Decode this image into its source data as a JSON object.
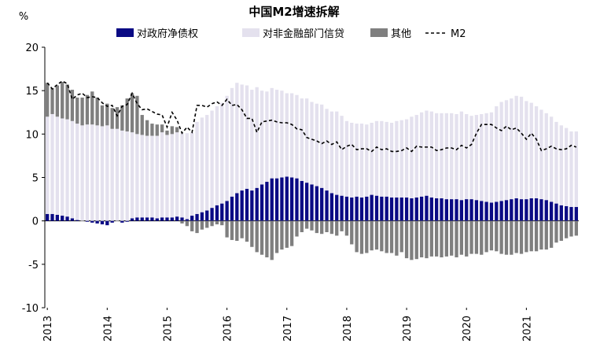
{
  "chart_data": {
    "type": "bar",
    "title": "中国M2增速拆解",
    "ylabel": "%",
    "xlabel": "",
    "ylim": [
      -10,
      20
    ],
    "yticks": [
      -10,
      -5,
      0,
      5,
      10,
      15,
      20
    ],
    "xticks": [
      "2013",
      "2014",
      "2015",
      "2016",
      "2017",
      "2018",
      "2019",
      "2020",
      "2021"
    ],
    "legend_position": "top",
    "x": [
      "2013-01",
      "2013-02",
      "2013-03",
      "2013-04",
      "2013-05",
      "2013-06",
      "2013-07",
      "2013-08",
      "2013-09",
      "2013-10",
      "2013-11",
      "2013-12",
      "2014-01",
      "2014-02",
      "2014-03",
      "2014-04",
      "2014-05",
      "2014-06",
      "2014-07",
      "2014-08",
      "2014-09",
      "2014-10",
      "2014-11",
      "2014-12",
      "2015-01",
      "2015-02",
      "2015-03",
      "2015-04",
      "2015-05",
      "2015-06",
      "2015-07",
      "2015-08",
      "2015-09",
      "2015-10",
      "2015-11",
      "2015-12",
      "2016-01",
      "2016-02",
      "2016-03",
      "2016-04",
      "2016-05",
      "2016-06",
      "2016-07",
      "2016-08",
      "2016-09",
      "2016-10",
      "2016-11",
      "2016-12",
      "2017-01",
      "2017-02",
      "2017-03",
      "2017-04",
      "2017-05",
      "2017-06",
      "2017-07",
      "2017-08",
      "2017-09",
      "2017-10",
      "2017-11",
      "2017-12",
      "2018-01",
      "2018-02",
      "2018-03",
      "2018-04",
      "2018-05",
      "2018-06",
      "2018-07",
      "2018-08",
      "2018-09",
      "2018-10",
      "2018-11",
      "2018-12",
      "2019-01",
      "2019-02",
      "2019-03",
      "2019-04",
      "2019-05",
      "2019-06",
      "2019-07",
      "2019-08",
      "2019-09",
      "2019-10",
      "2019-11",
      "2019-12",
      "2020-01",
      "2020-02",
      "2020-03",
      "2020-04",
      "2020-05",
      "2020-06",
      "2020-07",
      "2020-08",
      "2020-09",
      "2020-10",
      "2020-11",
      "2020-12",
      "2021-01",
      "2021-02",
      "2021-03",
      "2021-04",
      "2021-05",
      "2021-06",
      "2021-07",
      "2021-08",
      "2021-09",
      "2021-10",
      "2021-11"
    ],
    "series": [
      {
        "name": "对政府净债权",
        "kind": "bar",
        "color": "#0a0a84",
        "values": [
          0.8,
          0.8,
          0.7,
          0.6,
          0.5,
          0.3,
          0.1,
          0.0,
          -0.1,
          -0.2,
          -0.3,
          -0.4,
          -0.5,
          -0.2,
          0.0,
          -0.2,
          -0.1,
          0.3,
          0.4,
          0.4,
          0.4,
          0.4,
          0.3,
          0.4,
          0.4,
          0.4,
          0.5,
          0.4,
          0.2,
          0.6,
          0.8,
          1.0,
          1.2,
          1.5,
          1.8,
          2.0,
          2.3,
          2.8,
          3.2,
          3.5,
          3.7,
          3.5,
          3.8,
          4.2,
          4.5,
          4.9,
          4.9,
          5.0,
          5.1,
          5.0,
          4.9,
          4.6,
          4.4,
          4.2,
          4.0,
          3.8,
          3.5,
          3.2,
          3.0,
          2.9,
          2.8,
          2.7,
          2.8,
          2.7,
          2.8,
          3.0,
          2.9,
          2.8,
          2.8,
          2.7,
          2.7,
          2.7,
          2.7,
          2.6,
          2.7,
          2.8,
          2.9,
          2.7,
          2.6,
          2.6,
          2.5,
          2.5,
          2.5,
          2.4,
          2.5,
          2.5,
          2.4,
          2.3,
          2.2,
          2.1,
          2.2,
          2.3,
          2.4,
          2.5,
          2.6,
          2.5,
          2.5,
          2.6,
          2.6,
          2.5,
          2.4,
          2.2,
          2.0,
          1.8,
          1.7,
          1.6,
          1.6
        ]
      },
      {
        "name": "对非金融部门信贷",
        "kind": "bar",
        "color": "#e4e1ee",
        "values": [
          11.2,
          11.5,
          11.3,
          11.2,
          11.2,
          11.2,
          11.1,
          11.0,
          11.1,
          11.1,
          11.0,
          10.9,
          11.0,
          10.6,
          10.6,
          10.4,
          10.3,
          9.9,
          9.6,
          9.5,
          9.4,
          9.4,
          9.5,
          9.8,
          9.5,
          9.6,
          9.7,
          9.7,
          9.9,
          9.6,
          10.6,
          10.9,
          11.0,
          11.2,
          11.4,
          11.6,
          12.1,
          12.5,
          12.7,
          12.2,
          11.9,
          11.6,
          11.6,
          10.8,
          10.4,
          10.4,
          10.2,
          10.0,
          9.6,
          9.7,
          9.6,
          9.5,
          9.7,
          9.5,
          9.5,
          9.6,
          9.4,
          9.4,
          9.6,
          9.2,
          8.7,
          8.6,
          8.4,
          8.5,
          8.3,
          8.3,
          8.6,
          8.7,
          8.6,
          8.6,
          8.8,
          8.9,
          9.0,
          9.4,
          9.5,
          9.7,
          9.8,
          9.9,
          9.8,
          9.8,
          9.9,
          9.9,
          9.8,
          10.2,
          9.8,
          9.6,
          9.8,
          10.0,
          10.2,
          10.4,
          11.0,
          11.4,
          11.5,
          11.6,
          11.8,
          11.8,
          11.3,
          11.0,
          10.6,
          10.3,
          10.0,
          9.8,
          9.4,
          9.2,
          9.0,
          8.7,
          8.7
        ]
      },
      {
        "name": "其他",
        "kind": "bar",
        "color": "#7f7f7f",
        "values_pos": [
          3.9,
          3.0,
          3.6,
          4.2,
          4.0,
          3.6,
          3.0,
          3.2,
          3.4,
          3.8,
          3.2,
          2.4,
          2.5,
          2.4,
          2.5,
          2.9,
          3.8,
          4.5,
          4.4,
          2.3,
          1.8,
          1.4,
          1.3,
          0.9,
          0.5,
          0.9,
          0.6,
          0.0,
          0.0,
          0.0,
          0.0,
          0.0,
          0.0,
          0.0,
          0.0,
          0.0,
          0,
          0,
          0,
          0,
          0,
          0,
          0,
          0,
          0,
          0,
          0,
          0,
          0,
          0,
          0,
          0,
          0,
          0,
          0,
          0,
          0,
          0,
          0,
          0,
          0,
          0,
          0,
          0,
          0,
          0,
          0,
          0,
          0,
          0,
          0,
          0,
          0,
          0,
          0,
          0,
          0,
          0,
          0,
          0,
          0,
          0,
          0,
          0,
          0,
          0,
          0,
          0,
          0,
          0,
          0,
          0,
          0,
          0,
          0,
          0,
          0,
          0,
          0,
          0,
          0,
          0,
          0,
          0,
          0,
          0,
          0
        ],
        "values_neg": [
          0,
          0,
          0,
          0,
          0,
          0,
          0,
          0,
          0,
          0,
          0,
          0,
          0,
          0,
          0,
          0,
          0,
          0,
          0,
          0,
          0,
          0,
          0,
          0,
          0,
          0,
          0,
          -0.3,
          -0.6,
          -1.2,
          -1.4,
          -1.0,
          -0.8,
          -0.6,
          -0.4,
          -0.5,
          -1.9,
          -2.2,
          -2.3,
          -2.0,
          -2.4,
          -3.0,
          -3.6,
          -3.9,
          -4.2,
          -4.5,
          -3.7,
          -3.3,
          -3.1,
          -2.9,
          -1.8,
          -1.3,
          -0.9,
          -1.1,
          -1.4,
          -1.5,
          -1.3,
          -1.5,
          -1.7,
          -1.2,
          -1.7,
          -2.7,
          -3.6,
          -3.8,
          -3.7,
          -3.4,
          -3.3,
          -3.5,
          -3.7,
          -3.7,
          -4.0,
          -3.6,
          -4.3,
          -4.5,
          -4.4,
          -4.2,
          -4.3,
          -4.1,
          -4.1,
          -4.2,
          -4.1,
          -4.0,
          -4.2,
          -3.9,
          -4.1,
          -3.8,
          -3.8,
          -3.9,
          -3.6,
          -3.4,
          -3.5,
          -3.8,
          -3.9,
          -3.9,
          -3.7,
          -3.8,
          -3.6,
          -3.5,
          -3.5,
          -3.3,
          -3.3,
          -3.1,
          -2.5,
          -2.3,
          -2.0,
          -1.8,
          -1.7
        ]
      },
      {
        "name": "M2",
        "kind": "line",
        "color": "#000000",
        "values": [
          15.9,
          15.2,
          15.7,
          16.1,
          15.8,
          14.0,
          14.5,
          14.7,
          14.2,
          14.3,
          14.2,
          13.6,
          13.2,
          13.3,
          12.1,
          13.2,
          13.4,
          14.7,
          13.5,
          12.8,
          12.9,
          12.6,
          12.3,
          12.2,
          10.8,
          12.5,
          11.6,
          10.1,
          10.8,
          10.2,
          13.3,
          13.3,
          13.1,
          13.5,
          13.7,
          13.3,
          14.0,
          13.3,
          13.4,
          12.8,
          11.8,
          11.8,
          10.2,
          11.4,
          11.5,
          11.6,
          11.4,
          11.3,
          11.3,
          11.1,
          10.6,
          10.5,
          9.6,
          9.4,
          9.2,
          8.9,
          9.2,
          8.8,
          9.1,
          8.2,
          8.6,
          8.8,
          8.2,
          8.3,
          8.3,
          8.0,
          8.5,
          8.2,
          8.3,
          8.0,
          8.0,
          8.1,
          8.4,
          8.0,
          8.6,
          8.5,
          8.5,
          8.5,
          8.1,
          8.2,
          8.4,
          8.4,
          8.2,
          8.7,
          8.4,
          8.8,
          10.1,
          11.1,
          11.1,
          11.1,
          10.7,
          10.4,
          10.9,
          10.5,
          10.7,
          10.1,
          9.4,
          10.1,
          9.4,
          8.1,
          8.3,
          8.6,
          8.3,
          8.2,
          8.3,
          8.7,
          8.5
        ]
      }
    ]
  }
}
